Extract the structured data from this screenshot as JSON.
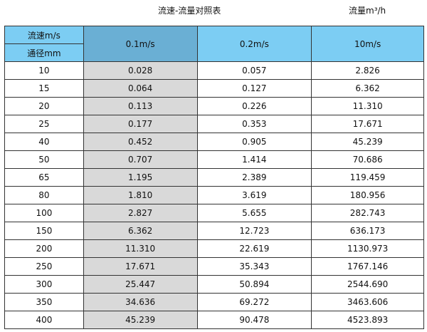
{
  "title": "流速-流量对照表",
  "unit_label": "流量m³/h",
  "header": {
    "speed_label": "流速m/s",
    "diameter_label": "通径mm",
    "columns": [
      "0.1m/s",
      "0.2m/s",
      "10m/s"
    ]
  },
  "colors": {
    "header": "#7ccdf3",
    "header_selected": "#6aafd4",
    "column_selected": "#d9d9d9"
  },
  "rows": [
    [
      "10",
      "0.028",
      "0.057",
      "2.826"
    ],
    [
      "15",
      "0.064",
      "0.127",
      "6.362"
    ],
    [
      "20",
      "0.113",
      "0.226",
      "11.310"
    ],
    [
      "25",
      "0.177",
      "0.353",
      "17.671"
    ],
    [
      "40",
      "0.452",
      "0.905",
      "45.239"
    ],
    [
      "50",
      "0.707",
      "1.414",
      "70.686"
    ],
    [
      "65",
      "1.195",
      "2.389",
      "119.459"
    ],
    [
      "80",
      "1.810",
      "3.619",
      "180.956"
    ],
    [
      "100",
      "2.827",
      "5.655",
      "282.743"
    ],
    [
      "150",
      "6.362",
      "12.723",
      "636.173"
    ],
    [
      "200",
      "11.310",
      "22.619",
      "1130.973"
    ],
    [
      "250",
      "17.671",
      "35.343",
      "1767.146"
    ],
    [
      "300",
      "25.447",
      "50.894",
      "2544.690"
    ],
    [
      "350",
      "34.636",
      "69.272",
      "3463.606"
    ],
    [
      "400",
      "45.239",
      "90.478",
      "4523.893"
    ]
  ]
}
